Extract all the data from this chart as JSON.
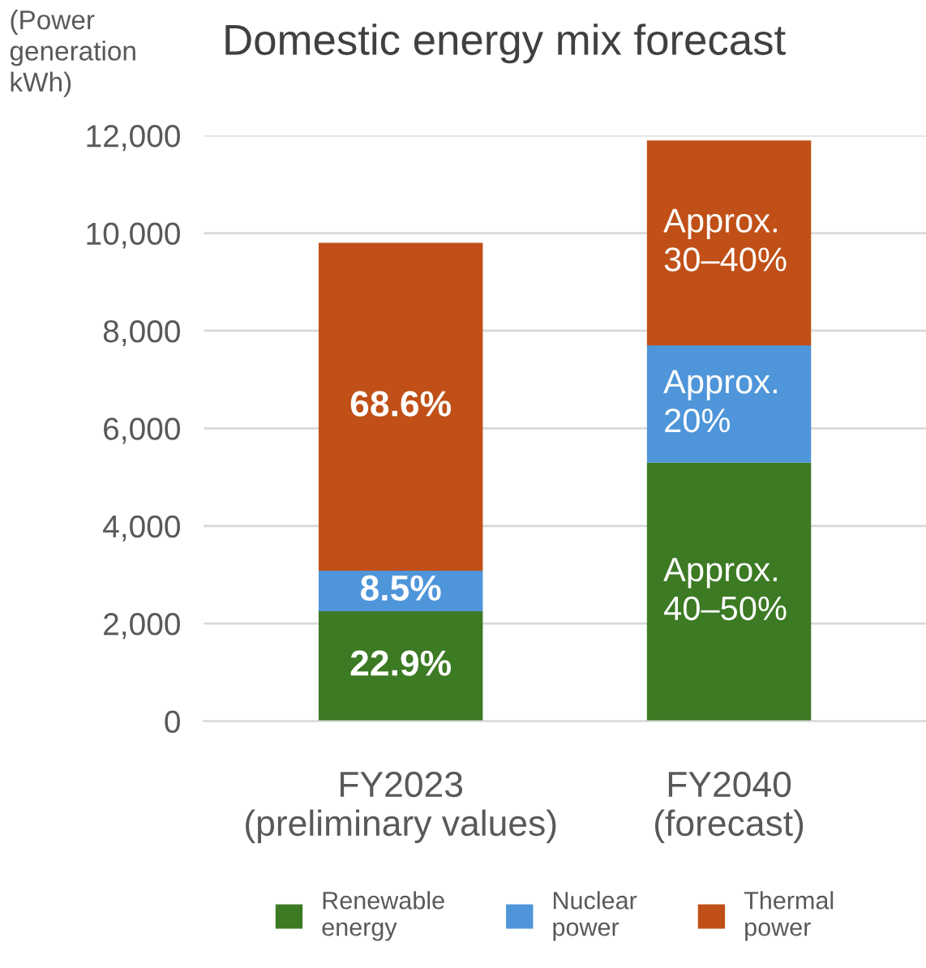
{
  "chart_data": {
    "type": "bar",
    "stacked": true,
    "title": "Domestic energy mix forecast",
    "ylabel": "(Power\ngeneration\nkWh)",
    "categories": [
      "FY2023\n(preliminary values)",
      "FY2040\n(forecast)"
    ],
    "series": [
      {
        "name": "Renewable\nenergy",
        "color": "#3c7a23",
        "values": [
          2250,
          5300
        ]
      },
      {
        "name": "Nuclear\npower",
        "color": "#4f95d9",
        "values": [
          830,
          2400
        ]
      },
      {
        "name": "Thermal\npower",
        "color": "#c05017",
        "values": [
          6720,
          4200
        ]
      }
    ],
    "annotations": [
      "22.9%",
      "Approx.\n40–50%",
      "8.5%",
      "Approx.\n20%",
      "68.6%",
      "Approx.\n30–40%"
    ],
    "ylim": [
      0,
      12000
    ],
    "yticks": [
      {
        "value": 0,
        "label": "0"
      },
      {
        "value": 2000,
        "label": "2,000"
      },
      {
        "value": 4000,
        "label": "4,000"
      },
      {
        "value": 6000,
        "label": "6,000"
      },
      {
        "value": 8000,
        "label": "8,000"
      },
      {
        "value": 10000,
        "label": "10,000"
      },
      {
        "value": 12000,
        "label": "12,000"
      }
    ],
    "grid": "y",
    "legend": "bottom"
  }
}
